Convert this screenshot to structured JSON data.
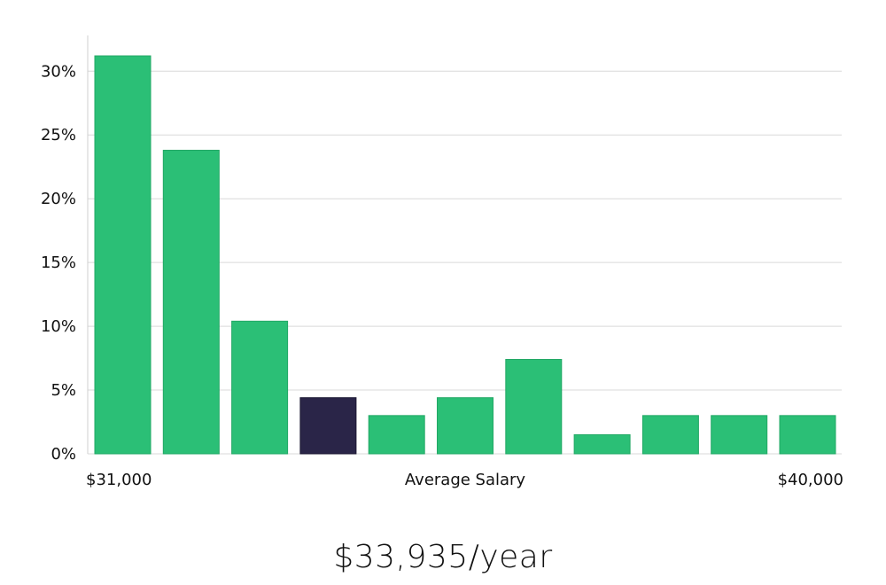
{
  "chart_data": {
    "type": "bar",
    "values": [
      31.2,
      23.8,
      10.4,
      4.4,
      3.0,
      4.4,
      7.4,
      1.5,
      3.0,
      3.0,
      3.0
    ],
    "highlight_index": 3,
    "bar_color": "#2bbf76",
    "highlight_color": "#2a2548",
    "ylim": [
      0,
      32.8
    ],
    "yticks": [
      0,
      5,
      10,
      15,
      20,
      25,
      30
    ],
    "ytick_labels": [
      "0%",
      "5%",
      "10%",
      "15%",
      "20%",
      "25%",
      "30%"
    ],
    "x_min_label": "$31,000",
    "x_max_label": "$40,000",
    "xlabel": "Average Salary",
    "grid": true
  },
  "salary_value": "$33,935/year"
}
